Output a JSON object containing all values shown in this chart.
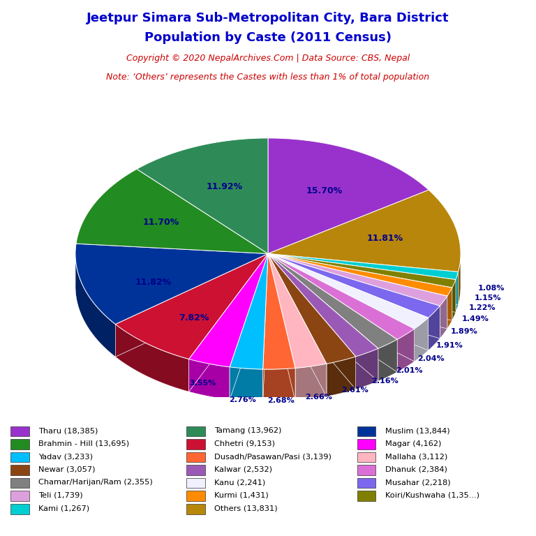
{
  "title_line1": "Jeetpur Simara Sub-Metropolitan City, Bara District",
  "title_line2": "Population by Caste (2011 Census)",
  "copyright_text": "Copyright © 2020 NepalArchives.Com | Data Source: CBS, Nepal",
  "note_text": "Note: ‘Others’ represents the Castes with less than 1% of total population",
  "title_color": "#0000CC",
  "copyright_color": "#CC0000",
  "note_color": "#CC0000",
  "label_color": "#00008B",
  "slices_cw_from_top": [
    {
      "name": "Tharu",
      "value": 18385,
      "color": "#9932CC"
    },
    {
      "name": "Others",
      "value": 13831,
      "color": "#B8860B"
    },
    {
      "name": "Kami",
      "value": 1267,
      "color": "#00CED1"
    },
    {
      "name": "Koiri/Kushwaha",
      "value": 1350,
      "color": "#808000"
    },
    {
      "name": "Kurmi",
      "value": 1431,
      "color": "#FF8C00"
    },
    {
      "name": "Teli",
      "value": 1739,
      "color": "#DDA0DD"
    },
    {
      "name": "Musahar",
      "value": 2218,
      "color": "#7B68EE"
    },
    {
      "name": "Kanu",
      "value": 2241,
      "color": "#F0F0FF"
    },
    {
      "name": "Dhanuk",
      "value": 2384,
      "color": "#DA70D6"
    },
    {
      "name": "Chamar/Harijan/Ram",
      "value": 2355,
      "color": "#808080"
    },
    {
      "name": "Kalwar",
      "value": 2532,
      "color": "#9B59B6"
    },
    {
      "name": "Newar",
      "value": 3057,
      "color": "#8B4513"
    },
    {
      "name": "Mallaha",
      "value": 3112,
      "color": "#FFB6C1"
    },
    {
      "name": "Dusadh/Pasawan/Pasi",
      "value": 3139,
      "color": "#FF6633"
    },
    {
      "name": "Yadav",
      "value": 3233,
      "color": "#00BFFF"
    },
    {
      "name": "Magar",
      "value": 4162,
      "color": "#FF00FF"
    },
    {
      "name": "Chhetri",
      "value": 9153,
      "color": "#CC1133"
    },
    {
      "name": "Muslim",
      "value": 13844,
      "color": "#003399"
    },
    {
      "name": "Brahmin - Hill",
      "value": 13695,
      "color": "#228B22"
    },
    {
      "name": "Tamang",
      "value": 13962,
      "color": "#2E8B57"
    }
  ],
  "legend_items": [
    {
      "label": "Tharu (18,385)",
      "color": "#9932CC"
    },
    {
      "label": "Brahmin - Hill (13,695)",
      "color": "#228B22"
    },
    {
      "label": "Yadav (3,233)",
      "color": "#00BFFF"
    },
    {
      "label": "Newar (3,057)",
      "color": "#8B4513"
    },
    {
      "label": "Chamar/Harijan/Ram (2,355)",
      "color": "#808080"
    },
    {
      "label": "Teli (1,739)",
      "color": "#DDA0DD"
    },
    {
      "label": "Kami (1,267)",
      "color": "#00CED1"
    },
    {
      "label": "Tamang (13,962)",
      "color": "#2E8B57"
    },
    {
      "label": "Chhetri (9,153)",
      "color": "#CC1133"
    },
    {
      "label": "Dusadh/Pasawan/Pasi (3,139)",
      "color": "#FF6633"
    },
    {
      "label": "Kalwar (2,532)",
      "color": "#9B59B6"
    },
    {
      "label": "Kanu (2,241)",
      "color": "#F0F0FF"
    },
    {
      "label": "Kurmi (1,431)",
      "color": "#FF8C00"
    },
    {
      "label": "Others (13,831)",
      "color": "#B8860B"
    },
    {
      "label": "Muslim (13,844)",
      "color": "#003399"
    },
    {
      "label": "Magar (4,162)",
      "color": "#FF00FF"
    },
    {
      "label": "Mallaha (3,112)",
      "color": "#FFB6C1"
    },
    {
      "label": "Dhanuk (2,384)",
      "color": "#DA70D6"
    },
    {
      "label": "Musahar (2,218)",
      "color": "#7B68EE"
    },
    {
      "label": "Koiri/Kushwaha (1,35...)",
      "color": "#808000"
    }
  ]
}
